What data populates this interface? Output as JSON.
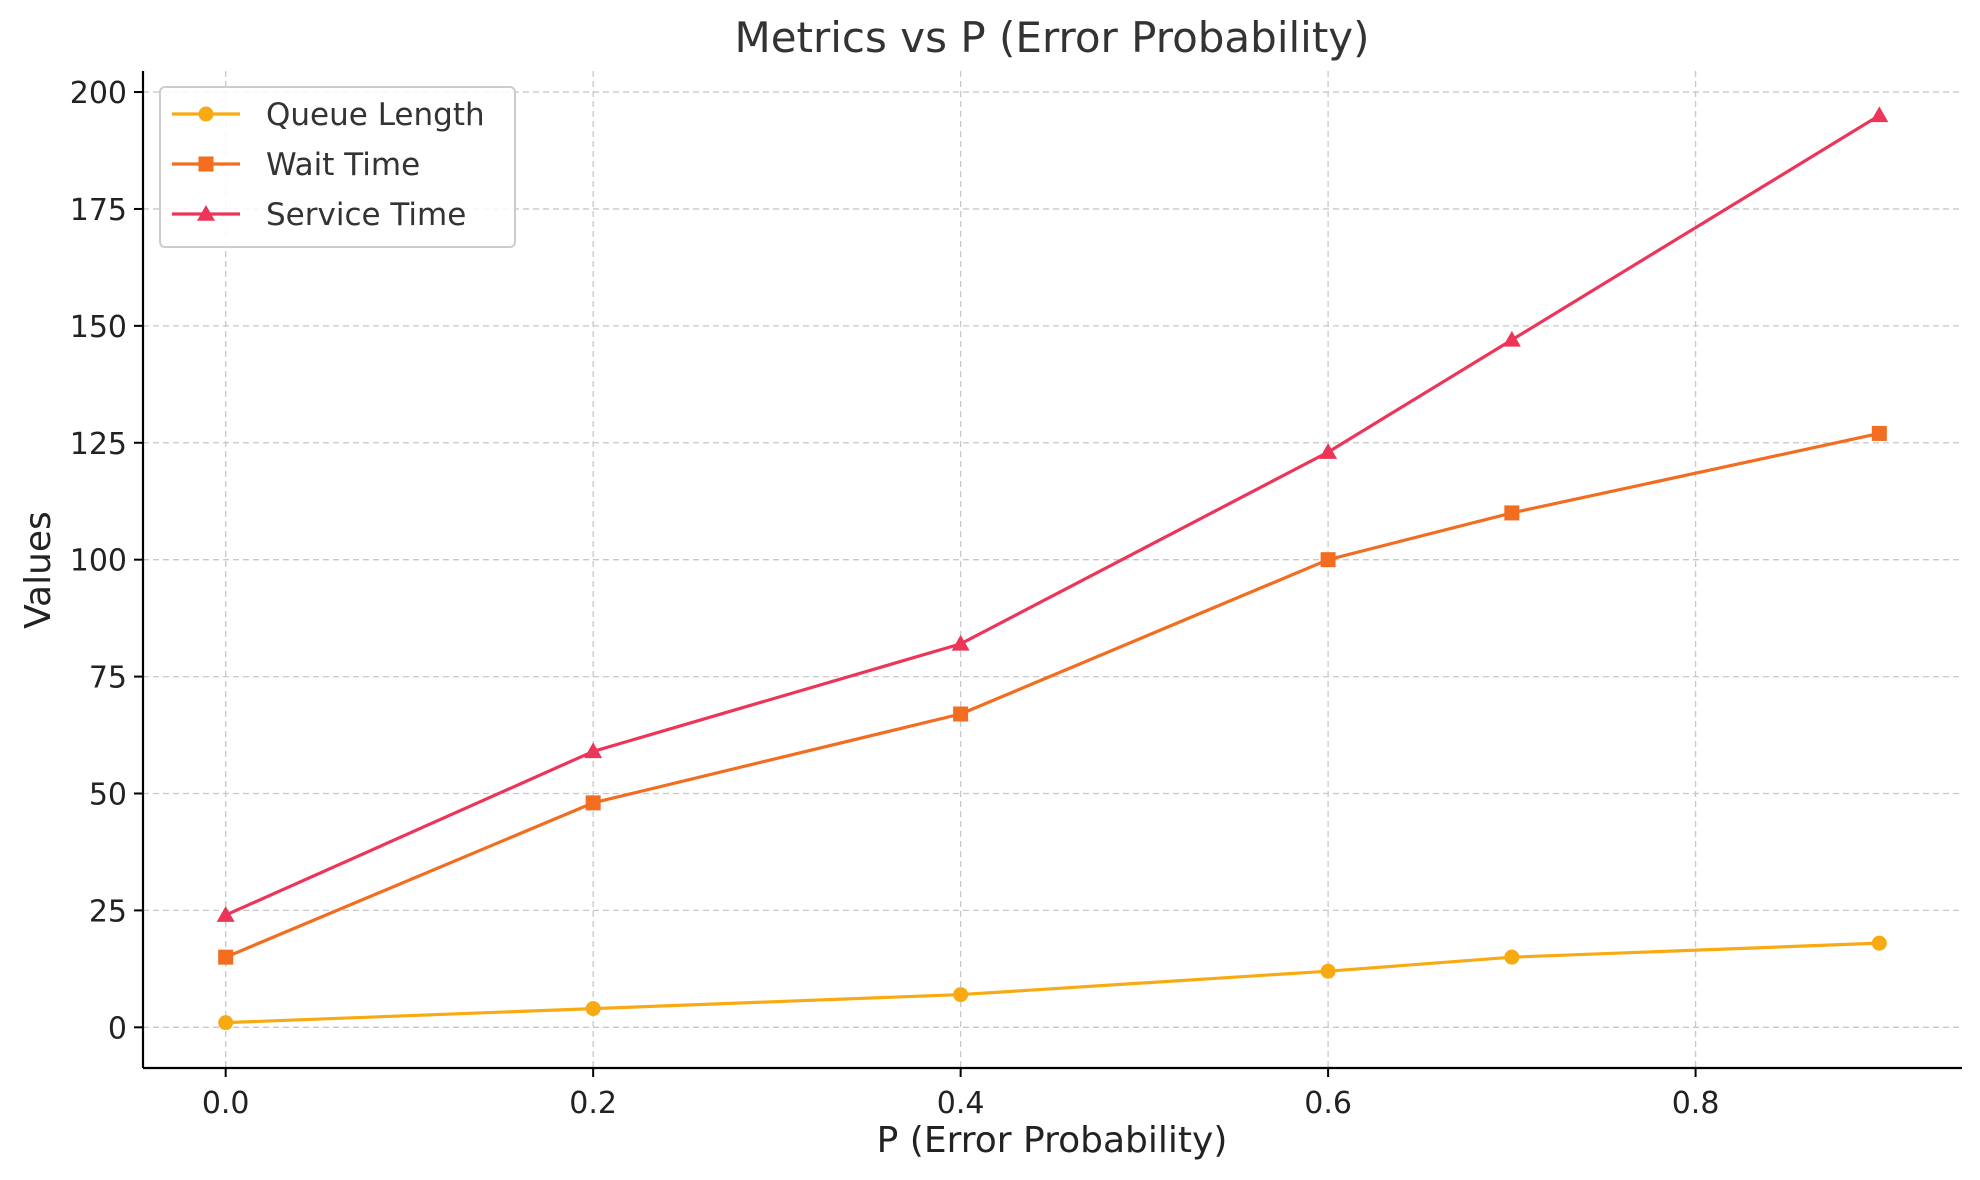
{
  "chart_data": {
    "type": "line",
    "title": "Metrics vs P (Error Probability)",
    "xlabel": "P (Error Probability)",
    "ylabel": "Values",
    "x": [
      0.0,
      0.2,
      0.4,
      0.6,
      0.7,
      0.9
    ],
    "xlim": [
      -0.045,
      0.945
    ],
    "ylim": [
      -8.7,
      204.5
    ],
    "xticks": [
      0.0,
      0.2,
      0.4,
      0.6,
      0.8
    ],
    "xtick_labels": [
      "0.0",
      "0.2",
      "0.4",
      "0.6",
      "0.8"
    ],
    "yticks": [
      0,
      25,
      50,
      75,
      100,
      125,
      150,
      175,
      200
    ],
    "ytick_labels": [
      "0",
      "25",
      "50",
      "75",
      "100",
      "125",
      "150",
      "175",
      "200"
    ],
    "grid": true,
    "legend_position": "top-left",
    "series": [
      {
        "name": "Queue Length",
        "values": [
          1,
          4,
          7,
          12,
          15,
          18
        ],
        "color": "#f8aa13",
        "marker": "circle"
      },
      {
        "name": "Wait Time",
        "values": [
          15,
          48,
          67,
          100,
          110,
          127
        ],
        "color": "#f26d1f",
        "marker": "square"
      },
      {
        "name": "Service Time",
        "values": [
          24,
          59,
          82,
          123,
          147,
          195
        ],
        "color": "#ec3558",
        "marker": "triangle"
      }
    ]
  }
}
